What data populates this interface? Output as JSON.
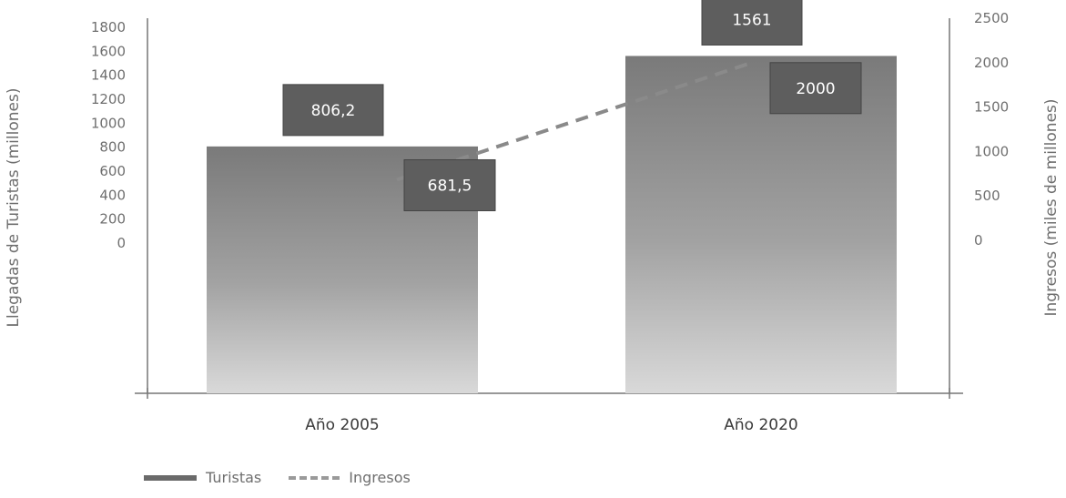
{
  "chart_data": {
    "type": "bar",
    "categories": [
      "Año 2005",
      "Año 2020"
    ],
    "series": [
      {
        "name": "Turistas",
        "type": "bar",
        "axis": "left",
        "values": [
          806.2,
          1561
        ]
      },
      {
        "name": "Ingresos",
        "type": "line",
        "axis": "right",
        "values": [
          681.5,
          2000
        ]
      }
    ],
    "data_labels": {
      "bars": [
        "806,2",
        "1561"
      ],
      "line": [
        "681,5",
        "2000"
      ]
    },
    "ylabel_left": "Llegadas de Turistas (millones)",
    "ylabel_right": "Ingresos (miles de millones)",
    "yticks_left": [
      "1800",
      "1600",
      "1400",
      "1200",
      "1000",
      "800",
      "600",
      "400",
      "200",
      "0"
    ],
    "yticks_right": [
      "2500",
      "2000",
      "1500",
      "1000",
      "500",
      "0"
    ],
    "ylim_left": [
      0,
      1800
    ],
    "ylim_right": [
      0,
      2500
    ],
    "legend_position": "bottom-left",
    "grid": false,
    "colors": {
      "bar": "#8c8c8c",
      "label_box": "#5e5e5e",
      "line": "#8a8a8a",
      "axis": "#777777"
    }
  }
}
